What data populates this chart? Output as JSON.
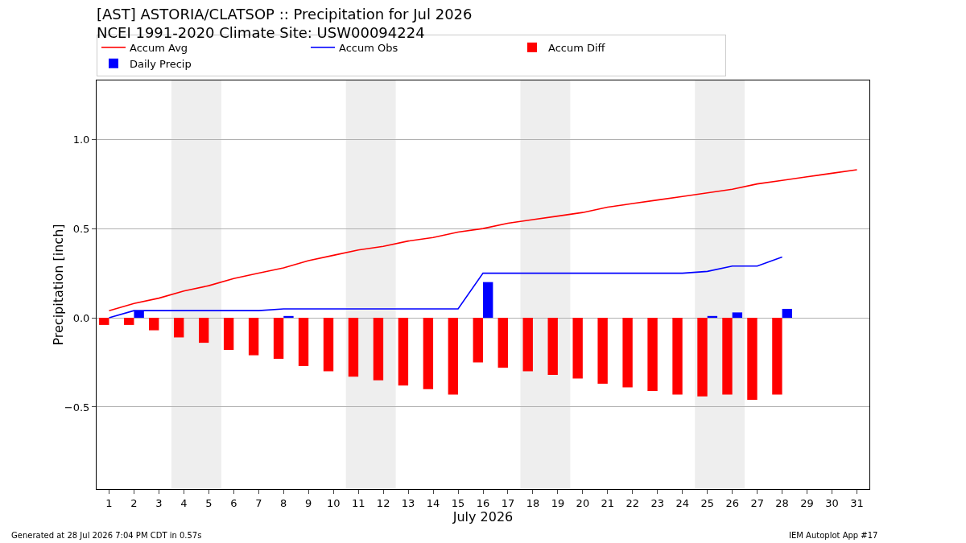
{
  "chart_data": {
    "type": "bar",
    "title": "[AST] ASTORIA/CLATSOP :: Precipitation for Jul 2026",
    "subtitle": "NCEI 1991-2020 Climate Site: USW00094224",
    "xlabel": "July 2026",
    "ylabel": "Precipitation [inch]",
    "x": [
      1,
      2,
      3,
      4,
      5,
      6,
      7,
      8,
      9,
      10,
      11,
      12,
      13,
      14,
      15,
      16,
      17,
      18,
      19,
      20,
      21,
      22,
      23,
      24,
      25,
      26,
      27,
      28,
      29,
      30,
      31
    ],
    "series": [
      {
        "name": "Accum Avg",
        "type": "line",
        "color": "#ff0000",
        "values": [
          0.04,
          0.08,
          0.11,
          0.15,
          0.18,
          0.22,
          0.25,
          0.28,
          0.32,
          0.35,
          0.38,
          0.4,
          0.43,
          0.45,
          0.48,
          0.5,
          0.53,
          0.55,
          0.57,
          0.59,
          0.62,
          0.64,
          0.66,
          0.68,
          0.7,
          0.72,
          0.75,
          0.77,
          0.79,
          0.81,
          0.83
        ]
      },
      {
        "name": "Accum Obs",
        "type": "line",
        "color": "#0000ff",
        "values": [
          0.0,
          0.04,
          0.04,
          0.04,
          0.04,
          0.04,
          0.04,
          0.05,
          0.05,
          0.05,
          0.05,
          0.05,
          0.05,
          0.05,
          0.05,
          0.25,
          0.25,
          0.25,
          0.25,
          0.25,
          0.25,
          0.25,
          0.25,
          0.25,
          0.26,
          0.29,
          0.29,
          0.34,
          null,
          null,
          null
        ]
      },
      {
        "name": "Accum Diff",
        "color": "#ff0000",
        "values": [
          -0.04,
          -0.04,
          -0.07,
          -0.11,
          -0.14,
          -0.18,
          -0.21,
          -0.23,
          -0.27,
          -0.3,
          -0.33,
          -0.35,
          -0.38,
          -0.4,
          -0.43,
          -0.25,
          -0.28,
          -0.3,
          -0.32,
          -0.34,
          -0.37,
          -0.39,
          -0.41,
          -0.43,
          -0.44,
          -0.43,
          -0.46,
          -0.43,
          null,
          null,
          null
        ]
      },
      {
        "name": "Daily Precip",
        "color": "#0000ff",
        "values": [
          0,
          0.04,
          0,
          0,
          0,
          0,
          0,
          0.01,
          0,
          0,
          0,
          0,
          0,
          0,
          0,
          0.2,
          0,
          0,
          0,
          0,
          0,
          0,
          0,
          0,
          0.01,
          0.03,
          0,
          0.05,
          null,
          null,
          null
        ]
      }
    ],
    "xlim": [
      0.5,
      31.5
    ],
    "xticks": [
      1,
      2,
      3,
      4,
      5,
      6,
      7,
      8,
      9,
      10,
      11,
      12,
      13,
      14,
      15,
      16,
      17,
      18,
      19,
      20,
      21,
      22,
      23,
      24,
      25,
      26,
      27,
      28,
      29,
      30,
      31
    ],
    "ylim": [
      -0.96,
      1.33
    ],
    "yticks": [
      {
        "value": -0.5,
        "label": "−0.5"
      },
      {
        "value": 0,
        "label": "0.0"
      },
      {
        "value": 0.5,
        "label": "0.5"
      },
      {
        "value": 1.0,
        "label": "1.0"
      }
    ],
    "bands": [
      {
        "axis": "x",
        "from": 3.5,
        "to": 5.5,
        "color": "#eeeeee"
      },
      {
        "axis": "x",
        "from": 10.5,
        "to": 12.5,
        "color": "#eeeeee"
      },
      {
        "axis": "x",
        "from": 17.5,
        "to": 19.5,
        "color": "#eeeeee"
      },
      {
        "axis": "x",
        "from": 24.5,
        "to": 26.5,
        "color": "#eeeeee"
      }
    ],
    "grid": "y",
    "legend": "top",
    "marker": "none",
    "line_style": "solid",
    "annotations": [
      "Generated at 28 Jul 2026 7:04 PM CDT in 0.57s",
      "IEM Autoplot App #17"
    ]
  }
}
